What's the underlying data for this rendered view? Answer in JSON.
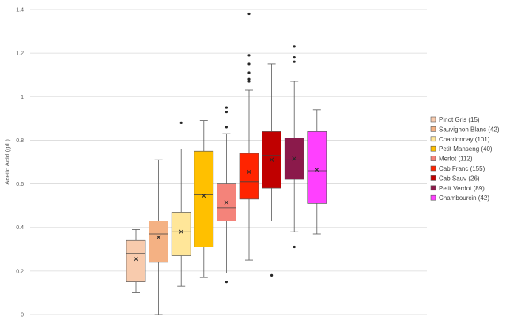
{
  "chart_data": {
    "type": "boxplot",
    "title": "",
    "xlabel": "",
    "ylabel": "Acetic Acid (g/L)",
    "ylim": [
      0,
      1.4
    ],
    "yticks": [
      "0",
      "0.2",
      "0.4",
      "0.6",
      "0.8",
      "1",
      "1.2",
      "1.4"
    ],
    "grid": true,
    "legend_position": "right",
    "series": [
      {
        "name": "Pinot Gris (15)",
        "color": "#F8CBAD",
        "min": 0.1,
        "q1": 0.15,
        "median": 0.28,
        "q3": 0.34,
        "max": 0.39,
        "mean": 0.255,
        "outliers": []
      },
      {
        "name": "Sauvignon Blanc (42)",
        "color": "#F4B183",
        "min": 0.0,
        "q1": 0.24,
        "median": 0.37,
        "q3": 0.43,
        "max": 0.71,
        "mean": 0.355,
        "outliers": []
      },
      {
        "name": "Chardonnay (101)",
        "color": "#FFE699",
        "min": 0.13,
        "q1": 0.27,
        "median": 0.38,
        "q3": 0.47,
        "max": 0.76,
        "mean": 0.38,
        "outliers": [
          0.88
        ]
      },
      {
        "name": "Petit Manseng (40)",
        "color": "#FFC000",
        "min": 0.17,
        "q1": 0.31,
        "median": 0.55,
        "q3": 0.75,
        "max": 0.89,
        "mean": 0.545,
        "outliers": []
      },
      {
        "name": "Merlot (112)",
        "color": "#F4837A",
        "min": 0.19,
        "q1": 0.43,
        "median": 0.49,
        "q3": 0.6,
        "max": 0.83,
        "mean": 0.515,
        "outliers": [
          0.15,
          0.86,
          0.93,
          0.95
        ]
      },
      {
        "name": "Cab Franc (155)",
        "color": "#FF2400",
        "min": 0.25,
        "q1": 0.53,
        "median": 0.61,
        "q3": 0.74,
        "max": 1.03,
        "mean": 0.655,
        "outliers": [
          1.07,
          1.08,
          1.11,
          1.15,
          1.19,
          1.38
        ]
      },
      {
        "name": "Cab Sauv (26)",
        "color": "#C00000",
        "min": 0.43,
        "q1": 0.58,
        "median": 0.73,
        "q3": 0.84,
        "max": 1.15,
        "mean": 0.71,
        "outliers": [
          0.18
        ]
      },
      {
        "name": "Petit Verdot (89)",
        "color": "#8B1A4B",
        "min": 0.38,
        "q1": 0.62,
        "median": 0.71,
        "q3": 0.81,
        "max": 1.07,
        "mean": 0.715,
        "outliers": [
          0.31,
          1.16,
          1.18,
          1.23
        ]
      },
      {
        "name": "Chambourcin (42)",
        "color": "#FF40FF",
        "min": 0.37,
        "q1": 0.51,
        "median": 0.66,
        "q3": 0.84,
        "max": 0.94,
        "mean": 0.665,
        "outliers": []
      }
    ]
  }
}
